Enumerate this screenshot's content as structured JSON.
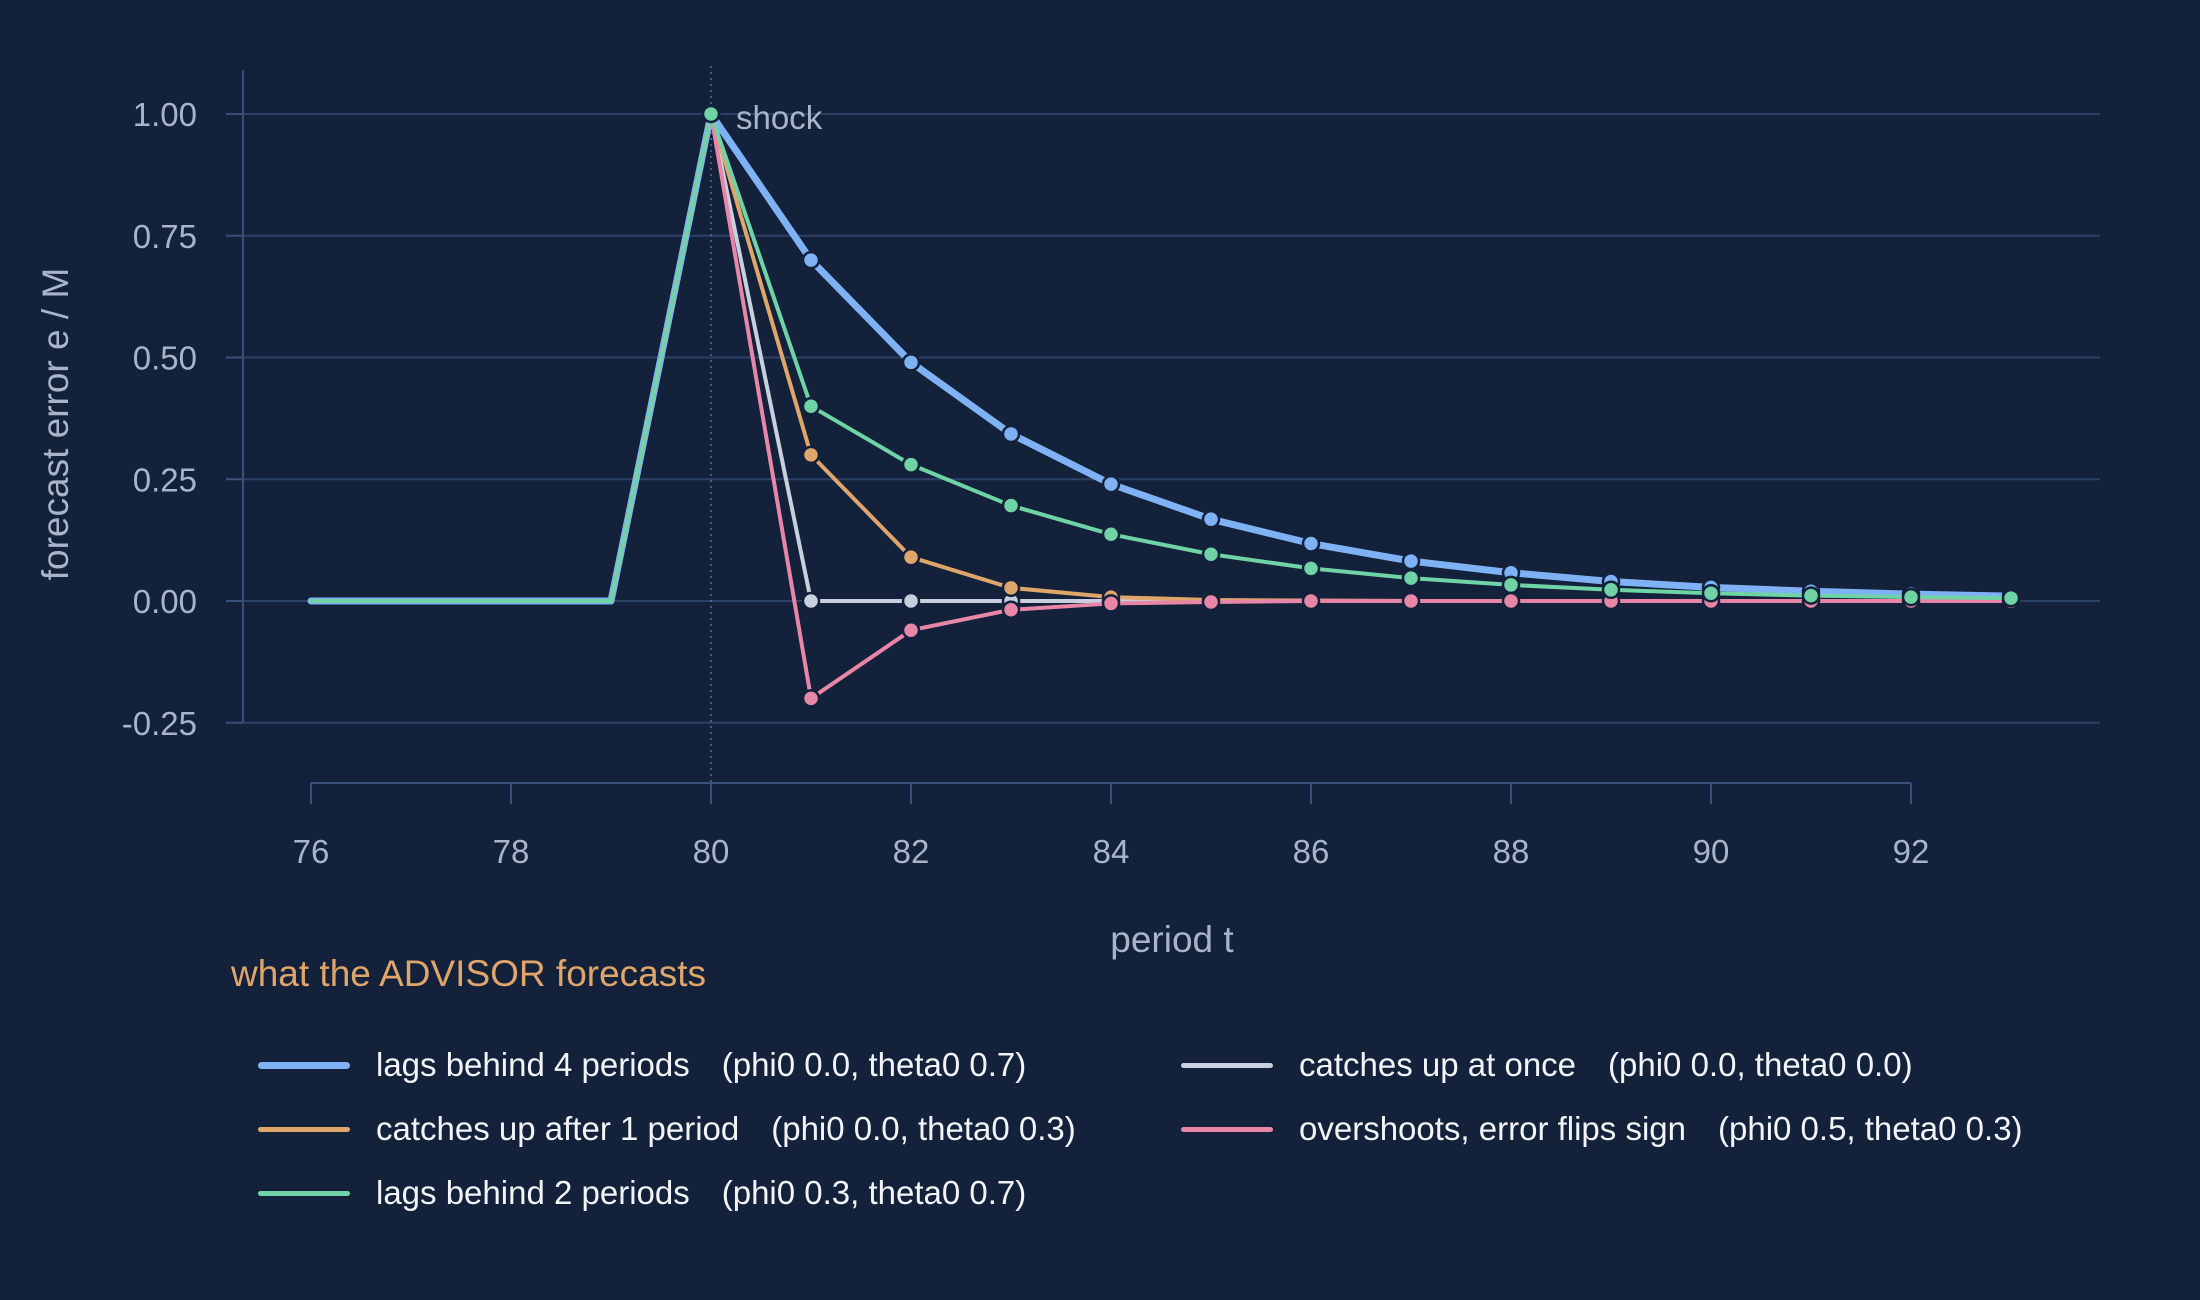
{
  "chart_data": {
    "type": "line",
    "xlabel": "period t",
    "ylabel": "forecast error  e / M",
    "xlim": [
      75.3,
      94.0
    ],
    "ylim": [
      -0.375,
      1.1
    ],
    "x_ticks": [
      "76",
      "78",
      "80",
      "82",
      "84",
      "86",
      "88",
      "90",
      "92"
    ],
    "y_ticks": [
      "1.00",
      "0.75",
      "0.50",
      "0.25",
      "0.00",
      "-0.25"
    ],
    "grid": true,
    "annotation": {
      "text": "shock",
      "x": 80,
      "y": 1.0
    },
    "legend_title": "what the ADVISOR forecasts",
    "legend_position": "bottom",
    "x": [
      76,
      77,
      78,
      79,
      80,
      81,
      82,
      83,
      84,
      85,
      86,
      87,
      88,
      89,
      90,
      91,
      92,
      93
    ],
    "series": [
      {
        "name": "lags behind 4 periods",
        "params": "(phi0 0.0, theta0 0.7)",
        "color": "#7fb2f5",
        "emphasis": true,
        "values": [
          0,
          0,
          0,
          0,
          1.0,
          0.7,
          0.49,
          0.343,
          0.24,
          0.168,
          0.118,
          0.082,
          0.058,
          0.04,
          0.028,
          0.02,
          0.014,
          0.01
        ]
      },
      {
        "name": "catches up at once",
        "params": "(phi0 0.0, theta0 0.0)",
        "color": "#c8d0df",
        "emphasis": false,
        "values": [
          0,
          0,
          0,
          0,
          1.0,
          0,
          0,
          0,
          0,
          0,
          0,
          0,
          0,
          0,
          0,
          0,
          0,
          0
        ]
      },
      {
        "name": "catches up after 1 period",
        "params": "(phi0 0.0, theta0 0.3)",
        "color": "#e0a56a",
        "emphasis": false,
        "values": [
          0,
          0,
          0,
          0,
          1.0,
          0.3,
          0.09,
          0.027,
          0.008,
          0.002,
          0.001,
          0,
          0,
          0,
          0,
          0,
          0,
          0
        ]
      },
      {
        "name": "overshoots, error flips sign",
        "params": "(phi0 0.5, theta0 0.3)",
        "color": "#e886a8",
        "emphasis": false,
        "values": [
          0,
          0,
          0,
          0,
          1.0,
          -0.2,
          -0.06,
          -0.018,
          -0.005,
          -0.002,
          0,
          0,
          0,
          0,
          0,
          0,
          0,
          0
        ]
      },
      {
        "name": "lags behind 2 periods",
        "params": "(phi0 0.3, theta0 0.7)",
        "color": "#6fd3a6",
        "emphasis": false,
        "values": [
          0,
          0,
          0,
          0,
          1.0,
          0.4,
          0.28,
          0.196,
          0.137,
          0.096,
          0.067,
          0.047,
          0.033,
          0.023,
          0.016,
          0.011,
          0.008,
          0.006
        ]
      }
    ]
  }
}
